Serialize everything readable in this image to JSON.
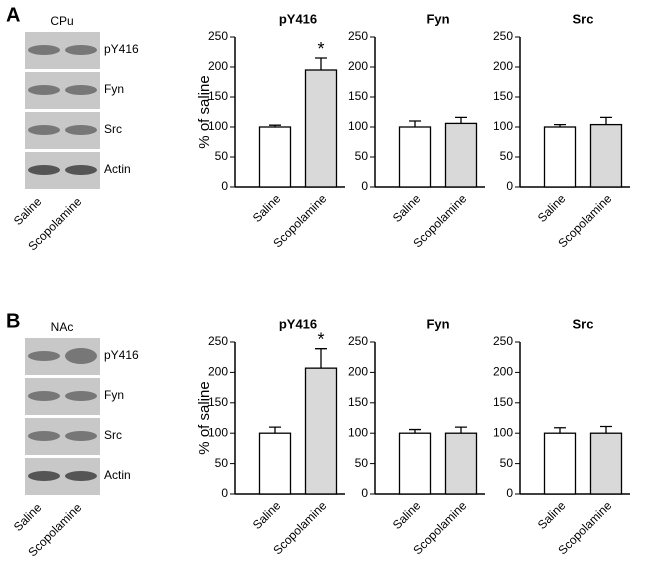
{
  "panels": [
    {
      "label": "A",
      "region": "CPu",
      "blot_labels": [
        "pY416",
        "Fyn",
        "Src",
        "Actin"
      ],
      "lanes": [
        "Saline",
        "Scopolamine"
      ]
    },
    {
      "label": "B",
      "region": "NAc",
      "blot_labels": [
        "pY416",
        "Fyn",
        "Src",
        "Actin"
      ],
      "lanes": [
        "Saline",
        "Scopolamine"
      ]
    }
  ],
  "chart_data": [
    {
      "type": "bar",
      "title": "pY416",
      "ylabel": "% of saline",
      "categories": [
        "Saline",
        "Scopolamine"
      ],
      "values": [
        100,
        195
      ],
      "errors": [
        3,
        20
      ],
      "sig_labels": [
        null,
        "*"
      ],
      "colors": [
        "#ffffff",
        "#d9d9d9"
      ],
      "ylim": [
        0,
        250
      ],
      "yticks": [
        0,
        50,
        100,
        150,
        200,
        250
      ]
    },
    {
      "type": "bar",
      "title": "Fyn",
      "categories": [
        "Saline",
        "Scopolamine"
      ],
      "values": [
        100,
        106
      ],
      "errors": [
        10,
        10
      ],
      "colors": [
        "#ffffff",
        "#d9d9d9"
      ],
      "ylim": [
        0,
        250
      ],
      "yticks": [
        0,
        50,
        100,
        150,
        200,
        250
      ]
    },
    {
      "type": "bar",
      "title": "Src",
      "categories": [
        "Saline",
        "Scopolamine"
      ],
      "values": [
        100,
        104
      ],
      "errors": [
        4,
        12
      ],
      "colors": [
        "#ffffff",
        "#d9d9d9"
      ],
      "ylim": [
        0,
        250
      ],
      "yticks": [
        0,
        50,
        100,
        150,
        200,
        250
      ]
    },
    {
      "type": "bar",
      "title": "pY416",
      "ylabel": "% of saline",
      "categories": [
        "Saline",
        "Scopolamine"
      ],
      "values": [
        100,
        207
      ],
      "errors": [
        10,
        32
      ],
      "sig_labels": [
        null,
        "*"
      ],
      "colors": [
        "#ffffff",
        "#d9d9d9"
      ],
      "ylim": [
        0,
        250
      ],
      "yticks": [
        0,
        50,
        100,
        150,
        200,
        250
      ]
    },
    {
      "type": "bar",
      "title": "Fyn",
      "categories": [
        "Saline",
        "Scopolamine"
      ],
      "values": [
        100,
        100
      ],
      "errors": [
        6,
        10
      ],
      "colors": [
        "#ffffff",
        "#d9d9d9"
      ],
      "ylim": [
        0,
        250
      ],
      "yticks": [
        0,
        50,
        100,
        150,
        200,
        250
      ]
    },
    {
      "type": "bar",
      "title": "Src",
      "categories": [
        "Saline",
        "Scopolamine"
      ],
      "values": [
        100,
        100
      ],
      "errors": [
        9,
        11
      ],
      "colors": [
        "#ffffff",
        "#d9d9d9"
      ],
      "ylim": [
        0,
        250
      ],
      "yticks": [
        0,
        50,
        100,
        150,
        200,
        250
      ]
    }
  ]
}
